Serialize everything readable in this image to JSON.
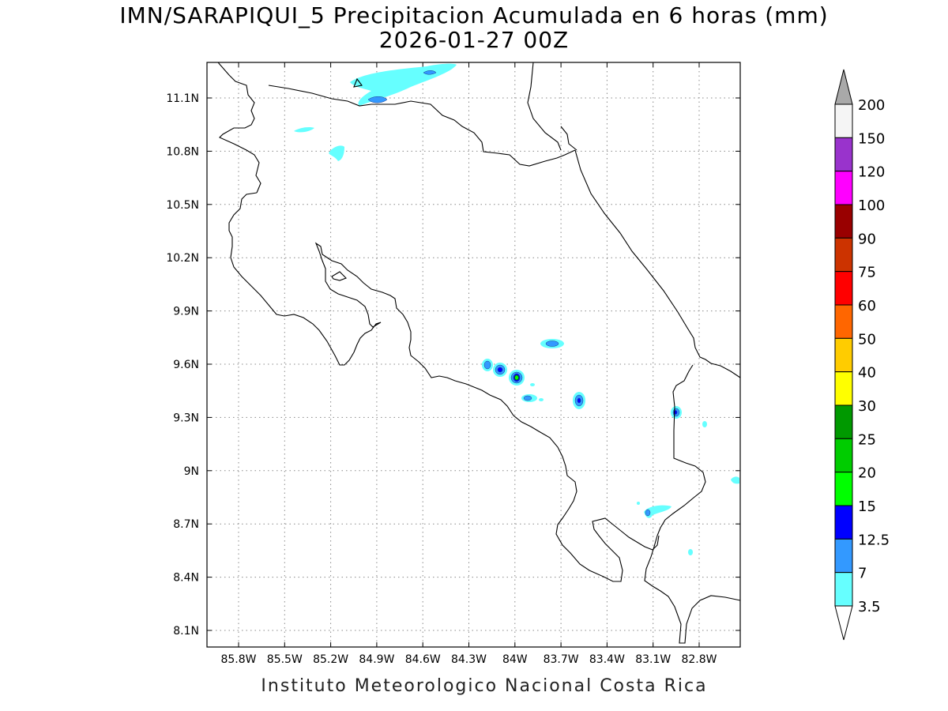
{
  "title": {
    "line1": "IMN/SARAPIQUI_5 Precipitacion Acumulada en 6 horas (mm)",
    "line2": "2026-01-27 00Z"
  },
  "footer": "Instituto Meteorologico Nacional Costa Rica",
  "map": {
    "lon_range": [
      -86.0,
      -83.0
    ],
    "lat_range": [
      8.0,
      11.3
    ],
    "lon_ticks": [
      "85.8W",
      "85.5W",
      "85.2W",
      "84.9W",
      "84.6W",
      "84.3W",
      "84W",
      "83.7W",
      "83.4W",
      "83.1W",
      "82.8W"
    ],
    "lat_ticks": [
      "11.1N",
      "10.8N",
      "10.5N",
      "10.2N",
      "9.9N",
      "9.6N",
      "9.3N",
      "9N",
      "8.7N",
      "8.4N",
      "8.1N"
    ],
    "grid": true,
    "coastline_color": "#000000"
  },
  "colorbar": {
    "labels": [
      "3.5",
      "7",
      "12.5",
      "15",
      "20",
      "25",
      "30",
      "40",
      "50",
      "60",
      "75",
      "90",
      "100",
      "120",
      "150",
      "200"
    ],
    "colors": [
      "#66ffff",
      "#3399ff",
      "#0000ff",
      "#00ff00",
      "#00cc00",
      "#009900",
      "#ffff00",
      "#ffcc00",
      "#ff6600",
      "#ff0000",
      "#cc3300",
      "#990000",
      "#ff00ff",
      "#9933cc",
      "#f5f5f5",
      "#a9a9a9"
    ],
    "under_color": "#ffffff",
    "over_color": "#a9a9a9"
  },
  "precip_colors": {
    "light": "#66ffff",
    "moderate": "#3399ff",
    "heavy": "#0000ff",
    "peak": "#00ff00"
  }
}
